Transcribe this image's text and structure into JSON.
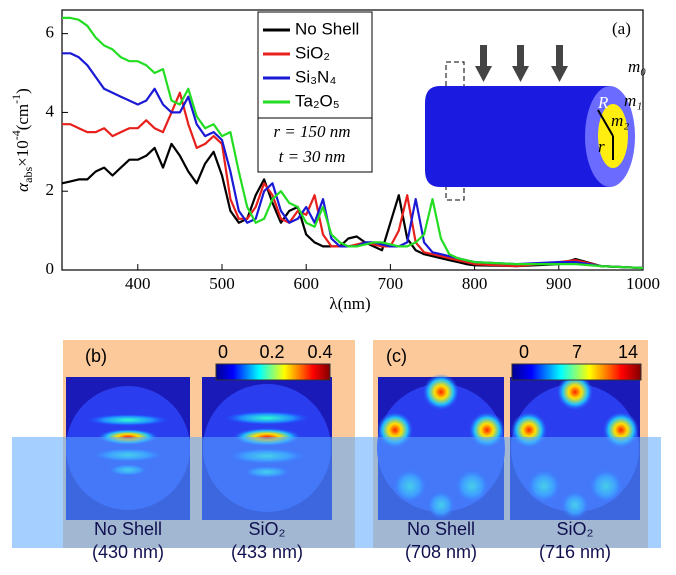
{
  "chart_data": {
    "type": "line",
    "annotation": "(a)",
    "y_label": [
      "α",
      "abs",
      "×10",
      "-4",
      "(cm",
      "-1",
      ")"
    ],
    "x_label": "λ(nm)",
    "params": [
      "r = 150 nm",
      "t = 30 nm"
    ],
    "inset_labels": [
      "m₀",
      "m₁",
      "m₂",
      "R",
      "r"
    ],
    "x": [
      310,
      320,
      330,
      340,
      350,
      360,
      370,
      380,
      390,
      400,
      410,
      420,
      430,
      440,
      450,
      460,
      470,
      480,
      490,
      500,
      510,
      520,
      530,
      540,
      550,
      560,
      570,
      580,
      590,
      600,
      610,
      620,
      630,
      640,
      650,
      660,
      670,
      680,
      690,
      700,
      710,
      720,
      730,
      740,
      750,
      760,
      770,
      780,
      790,
      800,
      850,
      900,
      920,
      950,
      1000
    ],
    "series": [
      {
        "name": "No Shell",
        "color": "#000000",
        "values": [
          2.2,
          2.25,
          2.3,
          2.3,
          2.5,
          2.6,
          2.4,
          2.6,
          2.8,
          2.8,
          2.9,
          3.1,
          2.6,
          3.2,
          2.9,
          2.5,
          2.2,
          2.7,
          3.0,
          2.4,
          1.5,
          1.2,
          1.3,
          1.9,
          2.3,
          1.7,
          1.2,
          1.5,
          1.6,
          0.9,
          0.7,
          0.6,
          0.6,
          0.6,
          0.8,
          0.85,
          0.7,
          0.6,
          0.5,
          1.2,
          1.9,
          0.8,
          0.5,
          0.4,
          0.35,
          0.3,
          0.25,
          0.2,
          0.15,
          0.12,
          0.1,
          0.15,
          0.28,
          0.1,
          0.05
        ]
      },
      {
        "name": "SiO₂",
        "color": "#e8201c",
        "values": [
          3.7,
          3.7,
          3.6,
          3.5,
          3.5,
          3.6,
          3.4,
          3.5,
          3.6,
          3.6,
          3.8,
          3.6,
          3.5,
          4.0,
          4.5,
          3.7,
          3.1,
          3.2,
          3.4,
          3.2,
          1.8,
          1.3,
          1.3,
          1.6,
          2.2,
          1.9,
          1.3,
          1.2,
          1.5,
          1.4,
          1.9,
          0.9,
          0.6,
          0.6,
          0.6,
          0.65,
          0.7,
          0.65,
          0.6,
          0.6,
          1.0,
          1.9,
          0.7,
          0.45,
          0.4,
          0.35,
          0.3,
          0.25,
          0.2,
          0.15,
          0.1,
          0.2,
          0.25,
          0.1,
          0.05
        ]
      },
      {
        "name": "Si₃N₄",
        "color": "#1a1ad6",
        "values": [
          5.5,
          5.5,
          5.4,
          5.2,
          4.9,
          4.6,
          4.5,
          4.4,
          4.3,
          4.2,
          4.3,
          4.6,
          4.2,
          4.0,
          4.0,
          4.4,
          3.7,
          3.4,
          3.5,
          3.3,
          2.5,
          1.5,
          1.2,
          1.3,
          2.0,
          2.2,
          1.5,
          1.2,
          1.3,
          1.6,
          1.2,
          1.8,
          0.8,
          0.6,
          0.6,
          0.6,
          0.7,
          0.7,
          0.65,
          0.6,
          0.6,
          0.7,
          1.8,
          0.7,
          0.45,
          0.4,
          0.35,
          0.3,
          0.25,
          0.2,
          0.15,
          0.2,
          0.2,
          0.1,
          0.05
        ]
      },
      {
        "name": "Ta₂O₅",
        "color": "#22dd22",
        "values": [
          6.4,
          6.4,
          6.35,
          6.2,
          5.9,
          5.7,
          5.6,
          5.4,
          5.3,
          5.3,
          5.2,
          5.0,
          5.1,
          4.3,
          4.2,
          4.6,
          3.9,
          3.6,
          3.7,
          3.4,
          3.5,
          2.5,
          1.6,
          1.2,
          1.3,
          1.8,
          2.0,
          1.7,
          1.6,
          1.2,
          1.1,
          1.6,
          0.9,
          0.7,
          0.6,
          0.6,
          0.65,
          0.7,
          0.7,
          0.65,
          0.6,
          0.6,
          0.7,
          0.9,
          1.8,
          0.8,
          0.4,
          0.3,
          0.25,
          0.2,
          0.15,
          0.15,
          0.15,
          0.1,
          0.05
        ]
      }
    ],
    "xlim": [
      310,
      1000
    ],
    "xticks": [
      400,
      500,
      600,
      700,
      800,
      900,
      1000
    ],
    "ylim": [
      0,
      6.6
    ],
    "yticks": [
      0,
      2,
      4,
      6
    ]
  },
  "field_maps": {
    "panel_b": {
      "label": "(b)",
      "colorbar_ticks": [
        "0",
        "0.2",
        "0.4"
      ],
      "captions": [
        [
          "No Shell",
          "(430 nm)"
        ],
        [
          "SiO₂",
          "(433 nm)"
        ]
      ]
    },
    "panel_c": {
      "label": "(c)",
      "colorbar_ticks": [
        "0",
        "7",
        "14"
      ],
      "captions": [
        [
          "No Shell",
          "(708 nm)"
        ],
        [
          "SiO₂",
          "(716 nm)"
        ]
      ]
    }
  }
}
